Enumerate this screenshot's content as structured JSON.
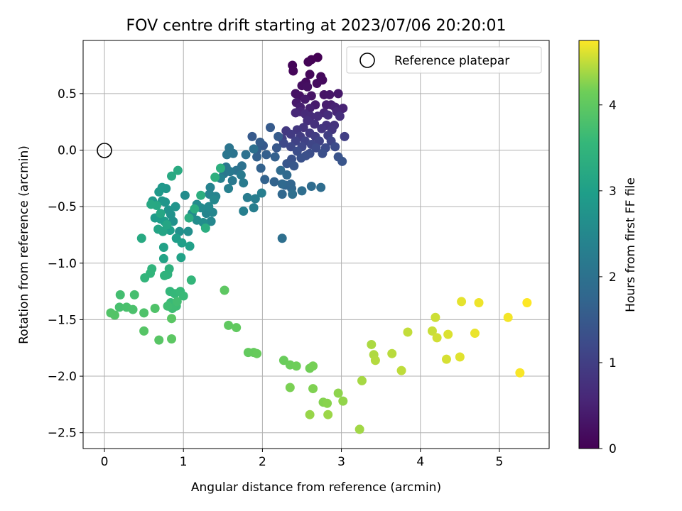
{
  "chart_data": {
    "type": "scatter",
    "title": "FOV centre drift starting at 2023/07/06 20:20:01",
    "xlabel": "Angular distance from reference (arcmin)",
    "ylabel": "Rotation from reference (arcmin)",
    "xlim": [
      -0.27,
      5.63
    ],
    "ylim": [
      -2.64,
      0.97
    ],
    "xticks": [
      0,
      1,
      2,
      3,
      4,
      5
    ],
    "xtick_labels": [
      "0",
      "1",
      "2",
      "3",
      "4",
      "5"
    ],
    "yticks": [
      -2.5,
      -2.0,
      -1.5,
      -1.0,
      -0.5,
      0.0,
      0.5
    ],
    "ytick_labels": [
      "−2.5",
      "−2.0",
      "−1.5",
      "−1.0",
      "−0.5",
      "0.0",
      "0.5"
    ],
    "grid": true,
    "legend": {
      "position": "top-right",
      "entries": [
        "Reference platepar"
      ]
    },
    "reference_point": {
      "x": 0,
      "y": 0,
      "label": "Reference platepar"
    },
    "colorbar": {
      "label": "Hours from first FF file",
      "colormap": "viridis",
      "range": [
        0,
        4.75
      ],
      "ticks": [
        0,
        1,
        2,
        3,
        4
      ],
      "tick_labels": [
        "0",
        "1",
        "2",
        "3",
        "4"
      ]
    },
    "series": [
      {
        "points": [
          [
            2.7,
            0.82
          ],
          [
            2.62,
            0.8
          ],
          [
            2.58,
            0.78
          ],
          [
            2.38,
            0.75
          ],
          [
            2.39,
            0.7
          ],
          [
            2.6,
            0.67
          ],
          [
            2.74,
            0.65
          ],
          [
            2.76,
            0.62
          ],
          [
            2.55,
            0.6
          ],
          [
            2.69,
            0.59
          ],
          [
            2.5,
            0.57
          ],
          [
            2.57,
            0.56
          ],
          [
            2.42,
            0.5
          ],
          [
            2.47,
            0.48
          ],
          [
            2.62,
            0.48
          ],
          [
            2.78,
            0.49
          ],
          [
            2.85,
            0.49
          ],
          [
            2.96,
            0.5
          ],
          [
            2.54,
            0.45
          ],
          [
            2.43,
            0.42
          ],
          [
            2.67,
            0.4
          ],
          [
            2.81,
            0.4
          ],
          [
            2.87,
            0.4
          ],
          [
            2.48,
            0.38
          ],
          [
            2.6,
            0.37
          ],
          [
            2.92,
            0.38
          ],
          [
            3.02,
            0.37
          ],
          [
            2.48,
            0.34
          ],
          [
            2.78,
            0.33
          ],
          [
            2.94,
            0.34
          ],
          [
            2.42,
            0.33
          ],
          [
            2.54,
            0.32
          ],
          [
            2.61,
            0.3
          ],
          [
            2.7,
            0.3
          ],
          [
            2.83,
            0.31
          ],
          [
            2.98,
            0.3
          ],
          [
            2.57,
            0.26
          ],
          [
            2.66,
            0.23
          ],
          [
            2.81,
            0.22
          ],
          [
            2.91,
            0.22
          ],
          [
            2.52,
            0.2
          ],
          [
            2.75,
            0.19
          ],
          [
            2.88,
            0.18
          ],
          [
            2.44,
            0.18
          ],
          [
            2.3,
            0.17
          ],
          [
            2.6,
            0.15
          ],
          [
            2.36,
            0.14
          ],
          [
            2.48,
            0.12
          ],
          [
            2.67,
            0.12
          ],
          [
            2.83,
            0.13
          ],
          [
            3.04,
            0.12
          ],
          [
            2.25,
            0.1
          ],
          [
            2.42,
            0.08
          ],
          [
            2.54,
            0.08
          ],
          [
            2.72,
            0.08
          ],
          [
            2.87,
            0.08
          ],
          [
            2.62,
            0.05
          ],
          [
            2.5,
            0.03
          ],
          [
            2.36,
            0.03
          ],
          [
            2.27,
            0.06
          ],
          [
            2.68,
            0.02
          ],
          [
            2.8,
            0.02
          ],
          [
            2.92,
            0.03
          ],
          [
            2.44,
            -0.01
          ],
          [
            2.6,
            -0.03
          ],
          [
            2.76,
            -0.03
          ],
          [
            2.55,
            -0.05
          ],
          [
            2.49,
            -0.07
          ],
          [
            2.37,
            -0.08
          ],
          [
            2.96,
            -0.06
          ],
          [
            3.01,
            -0.1
          ],
          [
            2.31,
            -0.12
          ],
          [
            2.4,
            -0.14
          ],
          [
            2.18,
            0.02
          ],
          [
            2.01,
            0.04
          ],
          [
            1.87,
            0.12
          ],
          [
            2.1,
            0.2
          ],
          [
            2.2,
            0.12
          ],
          [
            1.97,
            0.07
          ],
          [
            1.93,
            0.0
          ],
          [
            2.05,
            -0.04
          ],
          [
            2.16,
            -0.06
          ],
          [
            1.93,
            -0.06
          ],
          [
            1.98,
            -0.16
          ],
          [
            2.03,
            -0.26
          ],
          [
            2.15,
            -0.28
          ],
          [
            2.29,
            -0.31
          ],
          [
            2.36,
            -0.3
          ],
          [
            2.37,
            -0.34
          ],
          [
            2.25,
            -0.39
          ],
          [
            2.25,
            -0.3
          ],
          [
            2.31,
            -0.22
          ],
          [
            2.23,
            -0.18
          ],
          [
            2.62,
            -0.32
          ],
          [
            2.74,
            -0.33
          ],
          [
            2.5,
            -0.36
          ],
          [
            2.38,
            -0.39
          ],
          [
            2.25,
            -0.78
          ],
          [
            1.89,
            0.01
          ],
          [
            1.79,
            -0.04
          ],
          [
            1.74,
            -0.14
          ],
          [
            1.67,
            -0.18
          ],
          [
            1.63,
            -0.03
          ],
          [
            1.58,
            0.02
          ],
          [
            1.55,
            -0.04
          ],
          [
            1.51,
            -0.21
          ],
          [
            1.54,
            -0.15
          ],
          [
            1.59,
            -0.19
          ],
          [
            1.62,
            -0.27
          ],
          [
            1.73,
            -0.22
          ],
          [
            1.76,
            -0.29
          ],
          [
            1.81,
            -0.42
          ],
          [
            1.91,
            -0.43
          ],
          [
            1.99,
            -0.38
          ],
          [
            1.89,
            -0.51
          ],
          [
            1.76,
            -0.54
          ],
          [
            1.57,
            -0.34
          ],
          [
            1.47,
            -0.25
          ],
          [
            1.34,
            -0.33
          ],
          [
            1.41,
            -0.41
          ],
          [
            1.33,
            -0.39
          ],
          [
            1.29,
            -0.56
          ],
          [
            1.37,
            -0.55
          ],
          [
            1.35,
            -0.63
          ],
          [
            1.39,
            -0.44
          ],
          [
            1.32,
            -0.5
          ],
          [
            1.22,
            -0.51
          ],
          [
            1.11,
            -0.56
          ],
          [
            1.17,
            -0.48
          ],
          [
            1.02,
            -0.4
          ],
          [
            1.17,
            -0.62
          ],
          [
            1.25,
            -0.64
          ],
          [
            1.06,
            -0.72
          ],
          [
            0.95,
            -0.72
          ],
          [
            0.87,
            -0.63
          ],
          [
            0.84,
            -0.57
          ],
          [
            0.81,
            -0.53
          ],
          [
            0.9,
            -0.5
          ],
          [
            0.77,
            -0.46
          ],
          [
            0.73,
            -0.45
          ],
          [
            0.78,
            -0.34
          ],
          [
            0.73,
            -0.33
          ],
          [
            0.69,
            -0.37
          ],
          [
            0.61,
            -0.45
          ],
          [
            0.64,
            -0.6
          ],
          [
            0.71,
            -0.61
          ],
          [
            0.76,
            -0.63
          ],
          [
            0.83,
            -0.71
          ],
          [
            0.91,
            -0.78
          ],
          [
            0.98,
            -0.82
          ],
          [
            1.08,
            -0.85
          ],
          [
            0.75,
            -0.86
          ],
          [
            0.97,
            -0.95
          ],
          [
            0.75,
            -0.96
          ],
          [
            0.68,
            -0.7
          ],
          [
            0.74,
            -0.72
          ],
          [
            0.79,
            -0.66
          ],
          [
            0.71,
            -0.56
          ],
          [
            0.66,
            -0.49
          ],
          [
            0.59,
            -0.48
          ],
          [
            0.47,
            -0.78
          ],
          [
            0.85,
            -0.23
          ],
          [
            0.93,
            -0.18
          ],
          [
            1.07,
            -0.6
          ],
          [
            1.14,
            -0.52
          ],
          [
            1.28,
            -0.69
          ],
          [
            1.22,
            -0.4
          ],
          [
            1.4,
            -0.24
          ],
          [
            1.47,
            -0.16
          ],
          [
            0.82,
            -1.05
          ],
          [
            0.8,
            -1.1
          ],
          [
            0.76,
            -1.11
          ],
          [
            0.6,
            -1.05
          ],
          [
            0.58,
            -1.09
          ],
          [
            0.51,
            -1.13
          ],
          [
            1.1,
            -1.15
          ],
          [
            0.83,
            -1.25
          ],
          [
            0.89,
            -1.27
          ],
          [
            0.96,
            -1.25
          ],
          [
            1.0,
            -1.29
          ],
          [
            0.84,
            -1.35
          ],
          [
            0.91,
            -1.38
          ],
          [
            0.86,
            -1.4
          ],
          [
            0.8,
            -1.38
          ],
          [
            0.92,
            -1.34
          ],
          [
            0.2,
            -1.28
          ],
          [
            0.38,
            -1.28
          ],
          [
            0.19,
            -1.39
          ],
          [
            0.28,
            -1.39
          ],
          [
            0.36,
            -1.41
          ],
          [
            0.5,
            -1.44
          ],
          [
            0.64,
            -1.4
          ],
          [
            0.08,
            -1.44
          ],
          [
            0.13,
            -1.46
          ],
          [
            0.5,
            -1.6
          ],
          [
            0.69,
            -1.68
          ],
          [
            0.85,
            -1.49
          ],
          [
            0.85,
            -1.67
          ],
          [
            1.52,
            -1.24
          ],
          [
            1.57,
            -1.55
          ],
          [
            1.67,
            -1.57
          ],
          [
            1.82,
            -1.79
          ],
          [
            1.89,
            -1.79
          ],
          [
            1.93,
            -1.8
          ],
          [
            2.27,
            -1.86
          ],
          [
            2.35,
            -1.9
          ],
          [
            2.43,
            -1.91
          ],
          [
            2.6,
            -1.93
          ],
          [
            2.64,
            -1.91
          ],
          [
            2.35,
            -2.1
          ],
          [
            2.64,
            -2.11
          ],
          [
            2.77,
            -2.23
          ],
          [
            2.82,
            -2.24
          ],
          [
            2.96,
            -2.15
          ],
          [
            3.02,
            -2.22
          ],
          [
            2.6,
            -2.34
          ],
          [
            2.83,
            -2.34
          ],
          [
            3.23,
            -2.47
          ],
          [
            3.26,
            -2.04
          ],
          [
            3.38,
            -1.72
          ],
          [
            3.41,
            -1.81
          ],
          [
            3.43,
            -1.86
          ],
          [
            3.64,
            -1.8
          ],
          [
            3.76,
            -1.95
          ],
          [
            3.84,
            -1.61
          ],
          [
            4.15,
            -1.6
          ],
          [
            4.19,
            -1.48
          ],
          [
            4.21,
            -1.66
          ],
          [
            4.33,
            -1.85
          ],
          [
            4.35,
            -1.63
          ],
          [
            4.5,
            -1.83
          ],
          [
            4.52,
            -1.34
          ],
          [
            4.69,
            -1.62
          ],
          [
            4.74,
            -1.35
          ],
          [
            5.11,
            -1.48
          ],
          [
            5.26,
            -1.97
          ],
          [
            5.35,
            -1.35
          ]
        ]
      }
    ]
  }
}
